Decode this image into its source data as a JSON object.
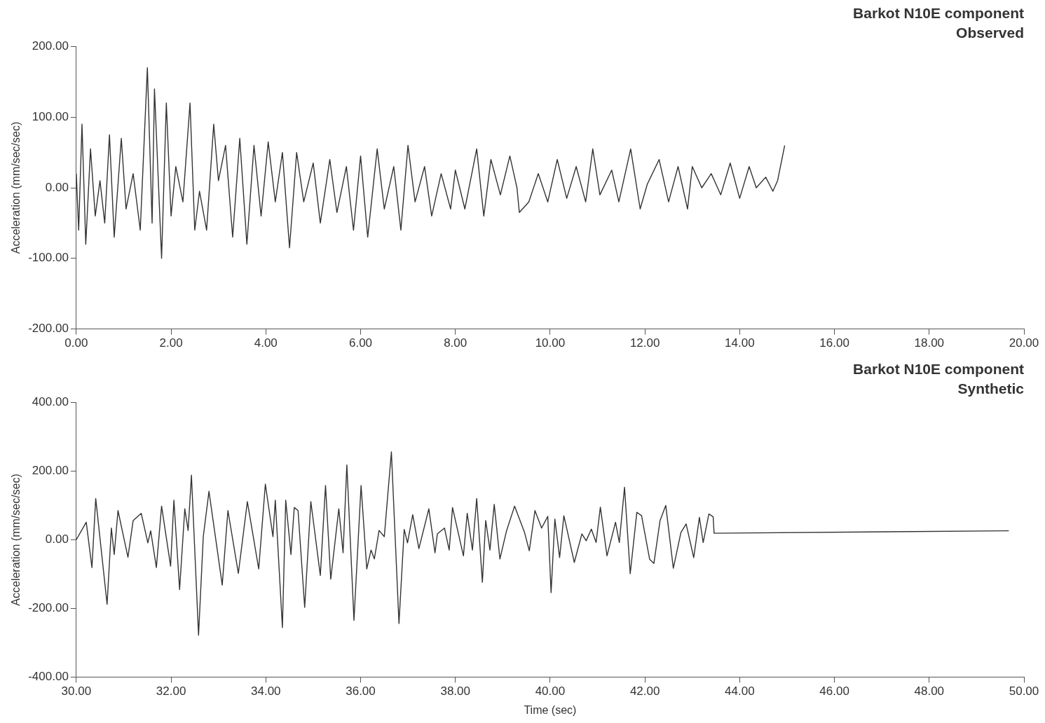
{
  "chart_data": [
    {
      "type": "line",
      "title": "Barkot N10E component",
      "subtitle": "Observed",
      "ylabel": "Acceleration (mm/sec/sec)",
      "color": "#333333",
      "grid": false,
      "marker": "none",
      "line_style": "solid",
      "x": [
        0,
        0.05,
        0.12,
        0.2,
        0.3,
        0.4,
        0.5,
        0.6,
        0.7,
        0.8,
        0.95,
        1.05,
        1.2,
        1.35,
        1.5,
        1.6,
        1.65,
        1.8,
        1.9,
        2.0,
        2.1,
        2.25,
        2.4,
        2.5,
        2.6,
        2.75,
        2.9,
        3.0,
        3.15,
        3.3,
        3.45,
        3.6,
        3.75,
        3.9,
        4.05,
        4.2,
        4.35,
        4.5,
        4.65,
        4.8,
        5.0,
        5.15,
        5.35,
        5.5,
        5.7,
        5.85,
        6.0,
        6.15,
        6.35,
        6.5,
        6.7,
        6.85,
        7.0,
        7.15,
        7.35,
        7.5,
        7.7,
        7.9,
        8.0,
        8.2,
        8.45,
        8.6,
        8.75,
        8.95,
        9.15,
        9.3,
        9.35,
        9.55,
        9.75,
        9.95,
        10.15,
        10.35,
        10.55,
        10.75,
        10.9,
        11.05,
        11.3,
        11.45,
        11.7,
        11.9,
        12.05,
        12.3,
        12.5,
        12.7,
        12.9,
        13.0,
        13.2,
        13.4,
        13.6,
        13.8,
        14.0,
        14.2,
        14.35,
        14.55,
        14.7,
        14.8,
        14.95
      ],
      "values": [
        20,
        -60,
        90,
        -80,
        55,
        -40,
        10,
        -50,
        75,
        -70,
        70,
        -30,
        20,
        -60,
        170,
        -50,
        140,
        -100,
        120,
        -40,
        30,
        -20,
        120,
        -60,
        -5,
        -60,
        90,
        10,
        60,
        -70,
        70,
        -80,
        60,
        -40,
        65,
        -20,
        50,
        -85,
        50,
        -20,
        35,
        -50,
        40,
        -35,
        30,
        -60,
        45,
        -70,
        55,
        -30,
        30,
        -60,
        60,
        -20,
        30,
        -40,
        20,
        -30,
        25,
        -30,
        55,
        -40,
        40,
        -10,
        45,
        0,
        -35,
        -20,
        20,
        -20,
        40,
        -15,
        30,
        -20,
        55,
        -10,
        25,
        -20,
        55,
        -30,
        5,
        40,
        -20,
        30,
        -30,
        30,
        0,
        20,
        -10,
        35,
        -15,
        30,
        0,
        15,
        -5,
        10,
        60
      ],
      "xlim": [
        0,
        20
      ],
      "xticks": [
        {
          "value": 0,
          "label": "0.00"
        },
        {
          "value": 2,
          "label": "2.00"
        },
        {
          "value": 4,
          "label": "4.00"
        },
        {
          "value": 6,
          "label": "6.00"
        },
        {
          "value": 8,
          "label": "8.00"
        },
        {
          "value": 10,
          "label": "10.00"
        },
        {
          "value": 12,
          "label": "12.00"
        },
        {
          "value": 14,
          "label": "14.00"
        },
        {
          "value": 16,
          "label": "16.00"
        },
        {
          "value": 18,
          "label": "18.00"
        },
        {
          "value": 20,
          "label": "20.00"
        }
      ],
      "ylim": [
        -200,
        200
      ],
      "yticks": [
        {
          "value": -200,
          "label": "-200.00"
        },
        {
          "value": -100,
          "label": "-100.00"
        },
        {
          "value": 0,
          "label": "0.00"
        },
        {
          "value": 100,
          "label": "100.00"
        },
        {
          "value": 200,
          "label": "200.00"
        }
      ]
    },
    {
      "type": "line",
      "title": "Barkot N10E component",
      "subtitle": "Synthetic",
      "xlabel": "Time (sec)",
      "ylabel": "Acceleration (mm/sec/sec)",
      "color": "#333333",
      "grid": false,
      "marker": "none",
      "line_style": "solid",
      "x": [
        30,
        30.21,
        30.33,
        30.41,
        30.65,
        30.74,
        30.8,
        30.88,
        31.09,
        31.2,
        31.37,
        31.51,
        31.57,
        31.69,
        31.8,
        31.99,
        32.06,
        32.18,
        32.29,
        32.36,
        32.43,
        32.58,
        32.68,
        32.8,
        33.08,
        33.2,
        33.42,
        33.61,
        33.85,
        33.99,
        34.15,
        34.2,
        34.35,
        34.42,
        34.53,
        34.6,
        34.68,
        34.82,
        34.95,
        35.15,
        35.26,
        35.37,
        35.54,
        35.63,
        35.71,
        35.86,
        36.01,
        36.13,
        36.22,
        36.29,
        36.39,
        36.5,
        36.65,
        36.81,
        36.92,
        36.99,
        37.1,
        37.23,
        37.44,
        37.57,
        37.62,
        37.77,
        37.87,
        37.94,
        38.17,
        38.25,
        38.36,
        38.45,
        38.57,
        38.64,
        38.73,
        38.82,
        38.94,
        39.08,
        39.25,
        39.46,
        39.56,
        39.68,
        39.82,
        39.95,
        40.02,
        40.1,
        40.2,
        40.29,
        40.51,
        40.67,
        40.76,
        40.87,
        40.97,
        41.06,
        41.2,
        41.38,
        41.46,
        41.57,
        41.69,
        41.83,
        41.93,
        42.1,
        42.19,
        42.32,
        42.44,
        42.6,
        42.76,
        42.87,
        43.03,
        43.15,
        43.23,
        43.35,
        43.44,
        43.46,
        49.68
      ],
      "values": [
        0,
        51,
        -81,
        120,
        -188,
        34,
        -43,
        85,
        -51,
        56,
        77,
        -9,
        26,
        -81,
        98,
        -77,
        115,
        -145,
        90,
        27,
        188,
        -278,
        9,
        141,
        -132,
        85,
        -98,
        111,
        -85,
        162,
        9,
        115,
        -256,
        115,
        -43,
        94,
        85,
        -197,
        111,
        -104,
        158,
        -115,
        90,
        -38,
        218,
        -235,
        158,
        -85,
        -30,
        -56,
        27,
        9,
        256,
        -244,
        30,
        -9,
        73,
        -26,
        90,
        -38,
        17,
        34,
        -30,
        94,
        -47,
        77,
        -30,
        120,
        -124,
        56,
        -30,
        103,
        -56,
        26,
        98,
        21,
        -32,
        85,
        34,
        68,
        -154,
        60,
        -52,
        70,
        -66,
        17,
        -3,
        31,
        -8,
        95,
        -47,
        51,
        -8,
        153,
        -99,
        80,
        70,
        -57,
        -69,
        56,
        100,
        -83,
        21,
        46,
        -52,
        65,
        -8,
        75,
        67,
        19,
        26
      ],
      "xlim": [
        30,
        50
      ],
      "xticks": [
        {
          "value": 30,
          "label": "30.00"
        },
        {
          "value": 32,
          "label": "32.00"
        },
        {
          "value": 34,
          "label": "34.00"
        },
        {
          "value": 36,
          "label": "36.00"
        },
        {
          "value": 38,
          "label": "38.00"
        },
        {
          "value": 40,
          "label": "40.00"
        },
        {
          "value": 42,
          "label": "42.00"
        },
        {
          "value": 44,
          "label": "44.00"
        },
        {
          "value": 46,
          "label": "46.00"
        },
        {
          "value": 48,
          "label": "48.00"
        },
        {
          "value": 50,
          "label": "50.00"
        }
      ],
      "ylim": [
        -400,
        400
      ],
      "yticks": [
        {
          "value": -400,
          "label": "-400.00"
        },
        {
          "value": -200,
          "label": "-200.00"
        },
        {
          "value": 0,
          "label": "0.00"
        },
        {
          "value": 200,
          "label": "200.00"
        },
        {
          "value": 400,
          "label": "400.00"
        }
      ]
    }
  ]
}
